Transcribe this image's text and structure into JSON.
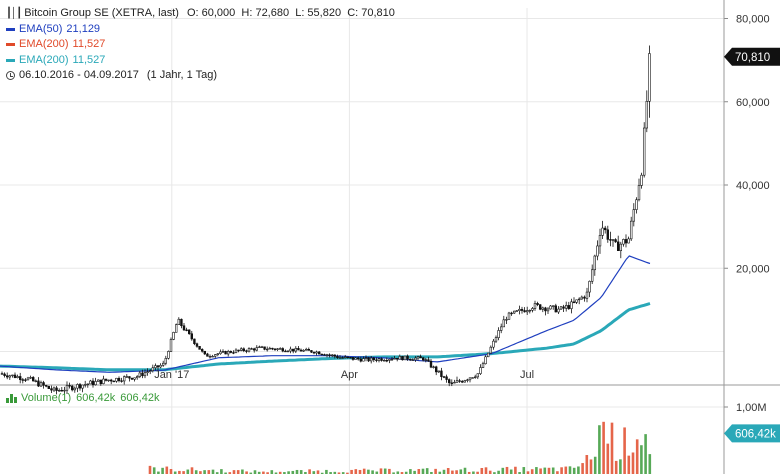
{
  "header": {
    "title": "Bitcoin Group SE (XETRA, last)",
    "ohlc": "O: 60,000  H: 72,680  L: 55,820  C: 70,810",
    "ema_lines": [
      {
        "label": "EMA(50)",
        "value": "21,129",
        "color": "#1f3fbf"
      },
      {
        "label": "EMA(200)",
        "value": "11,527",
        "color": "#e04a2a"
      },
      {
        "label": "EMA(200)",
        "value": "11,527",
        "color": "#2aa8b8"
      }
    ],
    "range": "06.10.2016 - 04.09.2017",
    "period": "(1 Jahr, 1 Tag)"
  },
  "volume_legend": {
    "label": "Volume(1)",
    "value1": "606,42k",
    "value2": "606,42k",
    "color": "#3a9a3a"
  },
  "price_axis": {
    "ticks": [
      "80,000",
      "60,000",
      "40,000",
      "20,000"
    ],
    "tick_values": [
      80,
      60,
      40,
      20
    ],
    "last_badge": "70,810",
    "last_value": 70.81
  },
  "volume_axis": {
    "ticks": [
      "1,00M"
    ],
    "tick_values": [
      1.0
    ],
    "last_badge": "606,42k",
    "last_value": 0.606
  },
  "x_axis": {
    "labels": [
      "Jan '17",
      "Apr",
      "Jul"
    ],
    "label_dates": [
      "2017-01-02",
      "2017-04-03",
      "2017-07-03"
    ]
  },
  "colors": {
    "candle": "#111111",
    "ema50": "#1f3fbf",
    "ema200": "#2aa8b8",
    "vol_up": "#3a9a3a",
    "vol_down": "#e04a2a",
    "badge": "#111111",
    "vol_badge": "#2aa8b8",
    "grid": "#e8e8e8"
  },
  "chart_data": {
    "type": "line",
    "title": "Bitcoin Group SE (XETRA, last)",
    "x_range": [
      "2016-10-06",
      "2017-09-04"
    ],
    "ylim": [
      -20,
      80
    ],
    "series": [
      {
        "name": "Bitcoin Group SE",
        "x": [
          "2016-10-06",
          "2016-10-20",
          "2016-11-03",
          "2016-11-17",
          "2016-12-01",
          "2016-12-15",
          "2016-12-29",
          "2017-01-05",
          "2017-01-19",
          "2017-02-02",
          "2017-02-16",
          "2017-03-02",
          "2017-03-16",
          "2017-03-30",
          "2017-04-13",
          "2017-04-27",
          "2017-05-11",
          "2017-05-25",
          "2017-06-08",
          "2017-06-22",
          "2017-07-06",
          "2017-07-20",
          "2017-07-27",
          "2017-08-03",
          "2017-08-10",
          "2017-08-17",
          "2017-08-24",
          "2017-08-31",
          "2017-09-04"
        ],
        "y": [
          -5.3,
          -6.5,
          -9.5,
          -8.0,
          -6.8,
          -6.0,
          -3.0,
          7.5,
          -1.0,
          0.0,
          0.8,
          0.5,
          0.0,
          -1.5,
          -2.0,
          -1.5,
          -1.7,
          -8.0,
          -5.3,
          8.2,
          11.0,
          10.0,
          11.5,
          14.0,
          30.5,
          25.0,
          27.0,
          45.0,
          70.81
        ]
      },
      {
        "name": "EMA(50)",
        "x": [
          "2016-10-06",
          "2016-11-03",
          "2016-12-01",
          "2016-12-29",
          "2017-01-26",
          "2017-02-23",
          "2017-03-23",
          "2017-04-20",
          "2017-05-18",
          "2017-06-15",
          "2017-07-13",
          "2017-07-27",
          "2017-08-10",
          "2017-08-24",
          "2017-09-04"
        ],
        "y": [
          -3.5,
          -4.4,
          -5.0,
          -4.5,
          -1.5,
          -1.0,
          -1.0,
          -1.5,
          -2.5,
          -0.5,
          5.0,
          7.5,
          13.0,
          23.0,
          21.13
        ]
      },
      {
        "name": "EMA(200)",
        "x": [
          "2016-10-06",
          "2016-11-03",
          "2016-12-01",
          "2016-12-29",
          "2017-01-26",
          "2017-02-23",
          "2017-03-23",
          "2017-04-20",
          "2017-05-18",
          "2017-06-15",
          "2017-07-13",
          "2017-07-27",
          "2017-08-10",
          "2017-08-24",
          "2017-09-04"
        ],
        "y": [
          -3.5,
          -3.9,
          -4.4,
          -4.4,
          -3.0,
          -2.3,
          -1.7,
          -1.3,
          -1.3,
          -0.5,
          0.8,
          1.8,
          5.0,
          10.0,
          11.53
        ]
      },
      {
        "name": "Volume(1)",
        "x": [
          "2016-12-20",
          "2017-02-15",
          "2017-05-20",
          "2017-07-25",
          "2017-08-05",
          "2017-08-10",
          "2017-08-20",
          "2017-08-30",
          "2017-09-04"
        ],
        "y": [
          0.11,
          0.05,
          0.08,
          0.1,
          0.3,
          1.0,
          0.5,
          0.96,
          0.61
        ]
      }
    ]
  }
}
